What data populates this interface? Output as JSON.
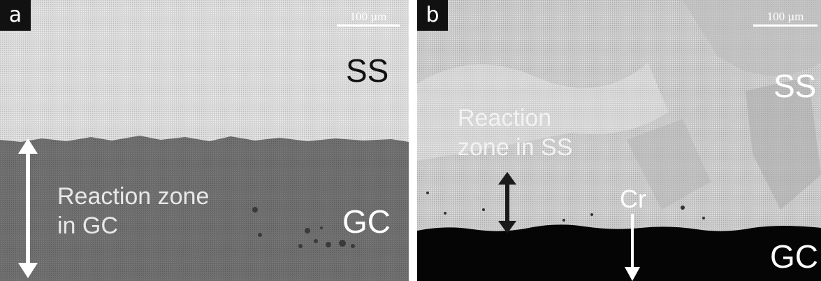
{
  "panels": [
    {
      "label": "a",
      "scalebar": "100 µm",
      "phases": {
        "top": "SS",
        "bottom": "GC"
      },
      "reaction_zone": {
        "line1": "Reaction zone",
        "line2": "in GC"
      }
    },
    {
      "label": "b",
      "scalebar": "100 µm",
      "phases": {
        "top": "SS",
        "bottom": "GC"
      },
      "reaction_zone": {
        "line1": "Reaction",
        "line2": "zone in SS"
      },
      "element_marker": "Cr"
    }
  ],
  "colors": {
    "ss_light": "#dddddd",
    "gc_gray": "#6e6e6e",
    "gc_black": "#050505",
    "label_bg": "#111111",
    "arrow_white": "#ffffff",
    "arrow_dark": "#1a1a1a"
  }
}
